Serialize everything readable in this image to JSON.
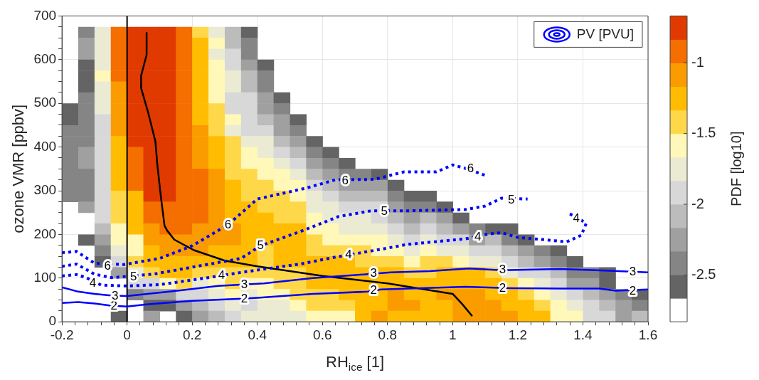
{
  "chart_data": {
    "type": "heatmap",
    "xlabel": "RH$_{ice}$ [1]",
    "ylabel": "ozone VMR [ppbv]",
    "clabel": "PDF [log10]",
    "legend": "top right",
    "grid": true,
    "marker": "none",
    "xlim": [
      -0.2,
      1.6
    ],
    "ylim": [
      0,
      700
    ],
    "xticks": [
      -0.2,
      {
        "value": -0.16,
        "label": null
      },
      {
        "value": -0.12,
        "label": null
      },
      {
        "value": -0.08,
        "label": null
      },
      {
        "value": -0.04,
        "label": null
      },
      0,
      {
        "value": 0.04,
        "label": null
      },
      {
        "value": 0.08,
        "label": null
      },
      {
        "value": 0.12,
        "label": null
      },
      {
        "value": 0.16,
        "label": null
      },
      0.2,
      {
        "value": 0.24,
        "label": null
      },
      {
        "value": 0.28,
        "label": null
      },
      {
        "value": 0.32,
        "label": null
      },
      {
        "value": 0.36,
        "label": null
      },
      0.4,
      {
        "value": 0.44,
        "label": null
      },
      {
        "value": 0.48,
        "label": null
      },
      {
        "value": 0.52,
        "label": null
      },
      {
        "value": 0.56,
        "label": null
      },
      0.6,
      {
        "value": 0.64,
        "label": null
      },
      {
        "value": 0.68,
        "label": null
      },
      {
        "value": 0.72,
        "label": null
      },
      {
        "value": 0.76,
        "label": null
      },
      0.8,
      {
        "value": 0.84,
        "label": null
      },
      {
        "value": 0.88,
        "label": null
      },
      {
        "value": 0.92,
        "label": null
      },
      {
        "value": 0.96,
        "label": null
      },
      1,
      {
        "value": 1.04,
        "label": null
      },
      {
        "value": 1.08,
        "label": null
      },
      {
        "value": 1.12,
        "label": null
      },
      {
        "value": 1.16,
        "label": null
      },
      1.2,
      {
        "value": 1.24,
        "label": null
      },
      {
        "value": 1.28,
        "label": null
      },
      {
        "value": 1.32,
        "label": null
      },
      {
        "value": 1.36,
        "label": null
      },
      1.4,
      {
        "value": 1.44,
        "label": null
      },
      {
        "value": 1.48,
        "label": null
      },
      {
        "value": 1.52,
        "label": null
      },
      {
        "value": 1.56,
        "label": null
      },
      1.6
    ],
    "yticks": [
      0,
      {
        "value": 25,
        "label": null
      },
      {
        "value": 50,
        "label": null
      },
      {
        "value": 75,
        "label": null
      },
      100,
      {
        "value": 125,
        "label": null
      },
      {
        "value": 150,
        "label": null
      },
      {
        "value": 175,
        "label": null
      },
      200,
      {
        "value": 225,
        "label": null
      },
      {
        "value": 250,
        "label": null
      },
      {
        "value": 275,
        "label": null
      },
      300,
      {
        "value": 325,
        "label": null
      },
      {
        "value": 350,
        "label": null
      },
      {
        "value": 375,
        "label": null
      },
      400,
      {
        "value": 425,
        "label": null
      },
      {
        "value": 450,
        "label": null
      },
      {
        "value": 475,
        "label": null
      },
      500,
      {
        "value": 525,
        "label": null
      },
      {
        "value": 550,
        "label": null
      },
      {
        "value": 575,
        "label": null
      },
      600,
      {
        "value": 625,
        "label": null
      },
      {
        "value": 650,
        "label": null
      },
      {
        "value": 675,
        "label": null
      },
      700
    ],
    "clim": [
      -2.83,
      -0.67
    ],
    "cticks": [
      -2.5,
      -2,
      -1.5,
      -1
    ],
    "colors": [
      "#ffffff",
      "#646464",
      "#858585",
      "#a0a0a0",
      "#bcbcbc",
      "#d8d8d8",
      "#ebebd4",
      "#fff8b8",
      "#ffd84a",
      "#ffbc00",
      "#fa9b00",
      "#f46e00",
      "#e03a00"
    ],
    "x": [
      -0.175,
      -0.125,
      -0.075,
      -0.025,
      0.025,
      0.075,
      0.125,
      0.175,
      0.225,
      0.275,
      0.325,
      0.375,
      0.425,
      0.475,
      0.525,
      0.575,
      0.625,
      0.675,
      0.725,
      0.775,
      0.825,
      0.875,
      0.925,
      0.975,
      1.025,
      1.075,
      1.125,
      1.175,
      1.225,
      1.275,
      1.325,
      1.375,
      1.425,
      1.475,
      1.525,
      1.575
    ],
    "y": [
      662.5,
      637.5,
      612.5,
      587.5,
      562.5,
      537.5,
      512.5,
      487.5,
      462.5,
      437.5,
      412.5,
      387.5,
      362.5,
      337.5,
      312.5,
      287.5,
      262.5,
      237.5,
      212.5,
      187.5,
      162.5,
      137.5,
      112.5,
      87.5,
      62.5,
      37.5,
      12.5
    ],
    "cells": [
      [
        null,
        -2.42,
        -1.75,
        -0.92,
        -0.75,
        -0.75,
        -0.75,
        -0.92,
        -1.42,
        -1.75,
        -2.08,
        -2.58,
        null,
        null,
        null,
        null,
        null,
        null,
        null,
        null,
        null,
        null,
        null,
        null,
        null,
        null,
        null,
        null,
        null,
        null,
        null,
        null,
        null,
        null,
        null,
        null
      ],
      [
        null,
        -2.25,
        -1.75,
        -0.92,
        -0.75,
        -0.75,
        -0.75,
        -0.92,
        -1.25,
        -1.58,
        -2.08,
        -2.42,
        null,
        null,
        null,
        null,
        null,
        null,
        null,
        null,
        null,
        null,
        null,
        null,
        null,
        null,
        null,
        null,
        null,
        null,
        null,
        null,
        null,
        null,
        null,
        null
      ],
      [
        null,
        -2.25,
        -1.75,
        -0.92,
        -0.75,
        -0.75,
        -0.75,
        -0.92,
        -1.25,
        -1.75,
        -1.92,
        -2.42,
        null,
        null,
        null,
        null,
        null,
        null,
        null,
        null,
        null,
        null,
        null,
        null,
        null,
        null,
        null,
        null,
        null,
        null,
        null,
        null,
        null,
        null,
        null,
        null
      ],
      [
        null,
        -2.58,
        -1.75,
        -0.92,
        -0.75,
        -0.75,
        -0.75,
        -0.92,
        -1.25,
        -1.58,
        -1.92,
        -2.25,
        -2.58,
        null,
        null,
        null,
        null,
        null,
        null,
        null,
        null,
        null,
        null,
        null,
        null,
        null,
        null,
        null,
        null,
        null,
        null,
        null,
        null,
        null,
        null,
        null
      ],
      [
        null,
        -2.58,
        -1.58,
        -0.92,
        -0.75,
        -0.75,
        -0.75,
        -0.92,
        -1.25,
        -1.58,
        -1.75,
        -2.08,
        -2.42,
        null,
        null,
        null,
        null,
        null,
        null,
        null,
        null,
        null,
        null,
        null,
        null,
        null,
        null,
        null,
        null,
        null,
        null,
        null,
        null,
        null,
        null,
        null
      ],
      [
        null,
        -2.58,
        -1.75,
        -1.08,
        -0.75,
        -0.75,
        -0.75,
        -0.92,
        -1.25,
        -1.58,
        -1.75,
        -2.08,
        -2.42,
        null,
        null,
        null,
        null,
        null,
        null,
        null,
        null,
        null,
        null,
        null,
        null,
        null,
        null,
        null,
        null,
        null,
        null,
        null,
        null,
        null,
        null,
        null
      ],
      [
        null,
        -2.42,
        -1.75,
        -1.08,
        -0.75,
        -0.75,
        -0.75,
        -0.92,
        -1.25,
        -1.58,
        -1.92,
        -1.92,
        -2.25,
        -2.58,
        null,
        null,
        null,
        null,
        null,
        null,
        null,
        null,
        null,
        null,
        null,
        null,
        null,
        null,
        null,
        null,
        null,
        null,
        null,
        null,
        null,
        null
      ],
      [
        -2.58,
        -2.42,
        -1.75,
        -1.08,
        -0.75,
        -0.75,
        -0.75,
        -0.92,
        -1.25,
        -1.42,
        -1.92,
        -1.92,
        -2.25,
        -2.42,
        null,
        null,
        null,
        null,
        null,
        null,
        null,
        null,
        null,
        null,
        null,
        null,
        null,
        null,
        null,
        null,
        null,
        null,
        null,
        null,
        null,
        null
      ],
      [
        -2.58,
        -2.42,
        -1.92,
        -1.08,
        -0.75,
        -0.75,
        -0.75,
        -0.92,
        -1.25,
        -1.42,
        -1.58,
        -1.92,
        -2.08,
        -2.25,
        -2.58,
        null,
        null,
        null,
        null,
        null,
        null,
        null,
        null,
        null,
        null,
        null,
        null,
        null,
        null,
        null,
        null,
        null,
        null,
        null,
        null,
        null
      ],
      [
        -2.42,
        -2.42,
        -1.92,
        -1.08,
        -0.75,
        -0.75,
        -0.75,
        -0.92,
        -1.08,
        -1.42,
        -1.75,
        -1.92,
        -1.92,
        -2.25,
        -2.42,
        null,
        null,
        null,
        null,
        null,
        null,
        null,
        null,
        null,
        null,
        null,
        null,
        null,
        null,
        null,
        null,
        null,
        null,
        null,
        null,
        null
      ],
      [
        -2.42,
        -2.42,
        -1.92,
        -1.25,
        -0.75,
        -0.75,
        -0.75,
        -0.92,
        -1.08,
        -1.25,
        -1.42,
        -1.75,
        -1.75,
        -2.08,
        -2.25,
        -2.58,
        null,
        null,
        null,
        null,
        null,
        null,
        null,
        null,
        null,
        null,
        null,
        null,
        null,
        null,
        null,
        null,
        null,
        null,
        null,
        null
      ],
      [
        -2.42,
        -2.25,
        -1.92,
        -1.25,
        -0.92,
        -0.75,
        -0.75,
        -0.92,
        -1.08,
        -1.25,
        -1.42,
        -1.58,
        -1.75,
        -1.92,
        -2.08,
        -2.42,
        -2.58,
        null,
        null,
        null,
        null,
        null,
        null,
        null,
        null,
        null,
        null,
        null,
        null,
        null,
        null,
        null,
        null,
        null,
        null,
        null
      ],
      [
        -2.42,
        -2.25,
        -1.92,
        -1.25,
        -0.92,
        -0.75,
        -0.75,
        -0.92,
        -1.08,
        -1.25,
        -1.42,
        -1.58,
        -1.58,
        -1.75,
        -1.92,
        -2.25,
        -2.42,
        -2.58,
        null,
        null,
        null,
        null,
        null,
        null,
        null,
        null,
        null,
        null,
        null,
        null,
        null,
        null,
        null,
        null,
        null,
        null
      ],
      [
        -2.42,
        -2.42,
        -1.92,
        -1.25,
        -0.92,
        -0.75,
        -0.75,
        -0.92,
        -0.92,
        -1.08,
        -1.42,
        -1.42,
        -1.58,
        -1.58,
        -1.75,
        -2.08,
        -2.25,
        -2.42,
        -2.42,
        -2.58,
        null,
        null,
        null,
        null,
        null,
        null,
        null,
        null,
        null,
        null,
        null,
        null,
        null,
        null,
        null,
        null
      ],
      [
        -2.42,
        -2.42,
        -1.92,
        -1.25,
        -0.92,
        -0.75,
        -0.75,
        -0.92,
        -0.92,
        -1.08,
        -1.25,
        -1.42,
        -1.42,
        -1.58,
        -1.58,
        -1.92,
        -2.08,
        -2.25,
        -2.25,
        -2.25,
        -2.58,
        null,
        null,
        null,
        null,
        null,
        null,
        null,
        null,
        null,
        null,
        null,
        null,
        null,
        null,
        null
      ],
      [
        -2.42,
        -2.42,
        -1.92,
        -1.42,
        -1.25,
        -0.75,
        -0.75,
        -0.92,
        -0.92,
        -1.08,
        -1.25,
        -1.42,
        -1.42,
        -1.42,
        -1.58,
        -1.75,
        -1.92,
        -2.08,
        -2.08,
        -2.08,
        -2.42,
        -2.58,
        -2.58,
        null,
        null,
        null,
        null,
        null,
        null,
        null,
        null,
        null,
        null,
        null,
        null,
        null
      ],
      [
        null,
        -2.25,
        -1.92,
        -1.42,
        -1.25,
        -0.92,
        -0.92,
        -0.92,
        -0.92,
        -1.08,
        -1.25,
        -1.25,
        -1.42,
        -1.42,
        -1.42,
        -1.75,
        -1.75,
        -1.92,
        -1.92,
        -1.92,
        -2.25,
        -2.42,
        -2.42,
        -2.58,
        null,
        null,
        null,
        null,
        null,
        null,
        null,
        null,
        null,
        null,
        null,
        null
      ],
      [
        null,
        null,
        -1.92,
        -1.42,
        -1.25,
        -0.92,
        -0.92,
        -0.92,
        -0.92,
        -1.08,
        -1.25,
        -1.25,
        -1.25,
        -1.42,
        -1.42,
        -1.58,
        -1.75,
        -1.75,
        -1.75,
        -1.92,
        -2.08,
        -2.25,
        -2.08,
        -2.25,
        -2.58,
        null,
        null,
        null,
        null,
        null,
        null,
        null,
        null,
        null,
        null,
        null
      ],
      [
        null,
        null,
        -2.08,
        -1.58,
        -1.25,
        -1.08,
        -0.92,
        -0.92,
        -1.08,
        -1.08,
        -1.08,
        -1.25,
        -1.25,
        -1.25,
        -1.25,
        -1.58,
        -1.58,
        -1.75,
        -1.75,
        -1.75,
        -1.92,
        -2.08,
        -1.92,
        -2.08,
        -2.25,
        -2.42,
        -2.58,
        -2.58,
        null,
        null,
        null,
        null,
        null,
        null,
        null,
        null
      ],
      [
        null,
        -2.58,
        -2.25,
        -1.58,
        -1.58,
        -1.08,
        -1.08,
        -1.08,
        -1.08,
        -1.08,
        -1.08,
        -1.25,
        -1.25,
        -1.25,
        -1.25,
        -1.42,
        -1.58,
        -1.58,
        -1.58,
        -1.58,
        -1.75,
        -1.92,
        -1.75,
        -1.92,
        -1.92,
        -2.25,
        -2.08,
        -2.42,
        -2.58,
        null,
        null,
        null,
        null,
        null,
        null,
        null
      ],
      [
        null,
        null,
        -2.42,
        -1.75,
        -1.58,
        -1.25,
        -1.08,
        -1.08,
        -1.08,
        -1.25,
        -1.25,
        -1.25,
        -1.42,
        -1.25,
        -1.25,
        -1.42,
        -1.42,
        -1.42,
        -1.42,
        -1.58,
        -1.58,
        -1.75,
        -1.58,
        -1.75,
        -1.75,
        -1.92,
        -1.92,
        -2.08,
        -2.25,
        -2.42,
        -2.58,
        null,
        null,
        null,
        null,
        null
      ],
      [
        null,
        null,
        -2.58,
        -1.92,
        -1.42,
        -1.25,
        -1.25,
        -1.25,
        -1.25,
        -1.25,
        -1.25,
        -1.25,
        -1.42,
        -1.25,
        -1.25,
        -1.25,
        -1.25,
        -1.25,
        -1.42,
        -1.42,
        -1.42,
        -1.58,
        -1.42,
        -1.42,
        -1.58,
        -1.75,
        -1.75,
        -1.92,
        -2.08,
        -2.25,
        -2.42,
        -2.58,
        null,
        null,
        null,
        null
      ],
      [
        null,
        null,
        null,
        -2.25,
        -1.75,
        -1.42,
        -1.25,
        -1.25,
        -1.42,
        -1.42,
        -1.42,
        -1.42,
        -1.42,
        -1.42,
        -1.42,
        -1.25,
        -1.25,
        -1.25,
        -1.25,
        -1.25,
        -1.25,
        -1.42,
        -1.42,
        -1.25,
        -1.25,
        -1.25,
        -1.42,
        -1.75,
        -1.92,
        -1.92,
        -2.08,
        -2.42,
        -2.42,
        -2.58,
        null,
        null
      ],
      [
        null,
        null,
        null,
        null,
        -1.92,
        -1.92,
        -1.58,
        -1.42,
        -1.75,
        -1.58,
        -1.42,
        -1.58,
        -1.58,
        -1.42,
        -1.42,
        -1.25,
        -1.25,
        -1.25,
        -1.25,
        -1.25,
        -1.25,
        -1.25,
        -1.25,
        -1.25,
        -1.25,
        -1.25,
        -1.25,
        -1.42,
        -1.58,
        -1.75,
        -1.92,
        -2.25,
        -2.25,
        -2.58,
        null,
        null
      ],
      [
        null,
        null,
        null,
        null,
        -2.42,
        -2.25,
        -2.25,
        -1.92,
        -1.92,
        -1.75,
        -1.58,
        -1.75,
        -1.58,
        -1.58,
        -1.42,
        -1.42,
        -1.42,
        -1.25,
        -1.25,
        -1.25,
        -1.08,
        -1.25,
        -1.25,
        -1.08,
        -1.08,
        -1.08,
        -1.25,
        -1.25,
        -1.42,
        -1.58,
        -1.75,
        -1.92,
        -2.08,
        -2.25,
        -2.42,
        -2.58
      ],
      [
        null,
        null,
        null,
        null,
        null,
        -2.58,
        -2.58,
        -2.25,
        -2.08,
        -1.92,
        -1.75,
        -1.92,
        -1.75,
        -1.75,
        -1.58,
        -1.42,
        -1.42,
        -1.42,
        -1.25,
        -1.25,
        -1.08,
        -1.08,
        -1.25,
        -1.25,
        -1.08,
        -1.08,
        -1.08,
        -1.25,
        -1.25,
        -1.42,
        -1.58,
        -1.75,
        -1.92,
        -2.08,
        -2.25,
        -2.42
      ],
      [
        null,
        null,
        null,
        -2.58,
        null,
        -2.25,
        null,
        -2.58,
        -2.25,
        -2.08,
        -1.92,
        -1.75,
        -1.75,
        -1.75,
        -1.75,
        -1.58,
        -1.58,
        -1.58,
        -1.25,
        -1.08,
        -1.25,
        -1.25,
        -1.25,
        -1.25,
        -1.08,
        -1.08,
        -1.08,
        -1.08,
        -1.25,
        -1.25,
        -1.58,
        -1.58,
        -1.92,
        -1.92,
        -2.25,
        -2.08
      ]
    ],
    "series": [
      {
        "type": "line",
        "name": "PV [PVU]",
        "color": "#0000ff",
        "line_style": "solid",
        "x": [
          -0.2,
          -0.15,
          -0.1,
          -0.05,
          0,
          0.06,
          0.15,
          0.2,
          0.35,
          0.4,
          0.57,
          0.74,
          0.78,
          0.9,
          1.04,
          1.18,
          1.33,
          1.45,
          1.5,
          1.6
        ],
        "values": [
          43,
          45,
          42,
          37,
          35,
          40,
          45,
          48,
          53,
          55,
          64,
          69,
          74,
          77,
          80,
          77,
          76,
          76,
          71,
          74
        ]
      },
      {
        "type": "line",
        "color": "#0000ff",
        "line_style": "solid",
        "x": [
          -0.2,
          -0.15,
          -0.1,
          -0.05,
          0,
          0.13,
          0.28,
          0.42,
          0.57,
          0.74,
          0.81,
          0.93,
          1.05,
          1.15,
          1.33,
          1.47,
          1.6
        ],
        "values": [
          79,
          69,
          64,
          60,
          59,
          69,
          82,
          88,
          100,
          109,
          113,
          116,
          122,
          118,
          121,
          117,
          113
        ]
      },
      {
        "type": "line",
        "color": "#0000ff",
        "line_style": "dotted",
        "x": [
          -0.2,
          -0.155,
          -0.125,
          -0.08,
          0,
          0.1,
          0.24,
          0.35,
          0.53,
          0.64,
          0.78,
          0.86,
          1.04,
          1.11,
          1.15,
          1.2,
          1.28,
          1.35,
          1.395,
          1.41,
          1.38,
          1.35
        ],
        "values": [
          105,
          108,
          101,
          84,
          82,
          85,
          100,
          113,
          132,
          148,
          166,
          177,
          190,
          201,
          204,
          193,
          188,
          183,
          198,
          225,
          240,
          250
        ]
      },
      {
        "type": "line",
        "color": "#0000ff",
        "line_style": "dotted",
        "x": [
          -0.2,
          -0.155,
          -0.1,
          -0.047,
          0.08,
          0.2,
          0.35,
          0.41,
          0.53,
          0.65,
          0.75,
          0.86,
          1.04,
          1.1,
          1.15,
          1.23
        ],
        "values": [
          127,
          132,
          109,
          101,
          109,
          125,
          145,
          174,
          206,
          241,
          254,
          254,
          257,
          265,
          283,
          281
        ]
      },
      {
        "type": "line",
        "color": "#0000ff",
        "line_style": "dotted",
        "x": [
          -0.2,
          -0.155,
          -0.1,
          -0.01,
          0.1,
          0.2,
          0.31,
          0.4,
          0.55,
          0.64,
          0.76,
          0.85,
          0.95,
          1.0,
          1.05,
          1.1
        ],
        "values": [
          158,
          161,
          134,
          131,
          145,
          174,
          222,
          281,
          306,
          325,
          326,
          343,
          343,
          359,
          349,
          335
        ]
      },
      {
        "type": "line",
        "color": "#000000",
        "line_style": "solid",
        "x": [
          0.06,
          0.06,
          0.043,
          0.043,
          0.065,
          0.087,
          0.093,
          0.104,
          0.115,
          0.123,
          0.145,
          0.205,
          0.3,
          0.4,
          0.6,
          0.8,
          1.0,
          1.03,
          1.06
        ],
        "values": [
          661,
          611,
          563,
          535,
          478,
          413,
          359,
          285,
          220,
          209,
          188,
          164,
          140,
          127,
          105,
          88,
          64,
          40,
          13
        ]
      }
    ],
    "ref_lines": [
      {
        "axis": "x",
        "value": 0,
        "color": "#000000"
      }
    ],
    "annotations": [
      {
        "text": "2",
        "x": -0.04,
        "y": 36
      },
      {
        "text": "2",
        "x": 0.36,
        "y": 52
      },
      {
        "text": "2",
        "x": 0.757,
        "y": 71
      },
      {
        "text": "2",
        "x": 1.153,
        "y": 77
      },
      {
        "text": "2",
        "x": 1.553,
        "y": 70
      },
      {
        "text": "3",
        "x": -0.037,
        "y": 59
      },
      {
        "text": "3",
        "x": 0.36,
        "y": 85
      },
      {
        "text": "3",
        "x": 0.757,
        "y": 110
      },
      {
        "text": "3",
        "x": 1.153,
        "y": 118
      },
      {
        "text": "3",
        "x": 1.553,
        "y": 114
      },
      {
        "text": "4",
        "x": -0.105,
        "y": 88
      },
      {
        "text": "4",
        "x": 0.29,
        "y": 105
      },
      {
        "text": "4",
        "x": 0.68,
        "y": 153
      },
      {
        "text": "4",
        "x": 1.077,
        "y": 193
      },
      {
        "text": "4",
        "x": 1.38,
        "y": 236
      },
      {
        "text": "5",
        "x": 0.02,
        "y": 103
      },
      {
        "text": "5",
        "x": 0.41,
        "y": 174
      },
      {
        "text": "5",
        "x": 0.79,
        "y": 252
      },
      {
        "text": "5",
        "x": 1.18,
        "y": 278
      },
      {
        "text": "6",
        "x": -0.06,
        "y": 127
      },
      {
        "text": "6",
        "x": 0.31,
        "y": 222
      },
      {
        "text": "6",
        "x": 0.67,
        "y": 323
      },
      {
        "text": "6",
        "x": 1.055,
        "y": 350
      }
    ]
  }
}
